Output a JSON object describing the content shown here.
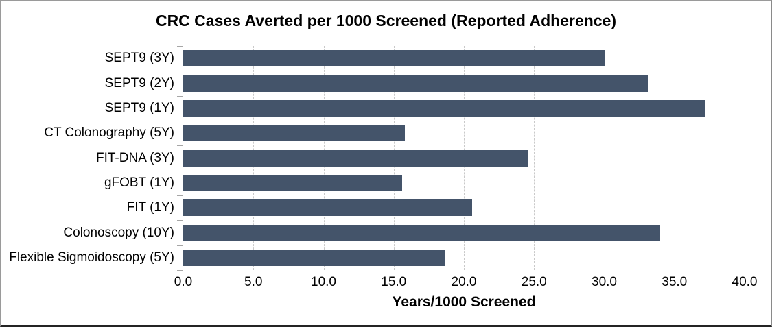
{
  "chart_data": {
    "type": "bar",
    "orientation": "horizontal",
    "title": "CRC Cases Averted per 1000 Screened (Reported Adherence)",
    "xlabel": "Years/1000 Screened",
    "ylabel": "",
    "categories": [
      "SEPT9 (3Y)",
      "SEPT9 (2Y)",
      "SEPT9 (1Y)",
      "CT Colonography (5Y)",
      "FIT-DNA (3Y)",
      "gFOBT (1Y)",
      "FIT (1Y)",
      "Colonoscopy (10Y)",
      "Flexible Sigmoidoscopy (5Y)"
    ],
    "values": [
      30.0,
      33.1,
      37.2,
      15.8,
      24.6,
      15.6,
      20.6,
      34.0,
      18.7
    ],
    "xlim": [
      0,
      40
    ],
    "xticks": [
      0,
      5,
      10,
      15,
      20,
      25,
      30,
      35,
      40
    ],
    "xtick_labels": [
      "0.0",
      "5.0",
      "10.0",
      "15.0",
      "20.0",
      "25.0",
      "30.0",
      "35.0",
      "40.0"
    ],
    "grid": "vertical-dashed",
    "legend": "none",
    "colors": {
      "bar": "#44546A",
      "gridline": "#C9C9C9",
      "axis_line": "#A6A6A6",
      "text": "#000000",
      "background": "#FFFFFF"
    }
  }
}
